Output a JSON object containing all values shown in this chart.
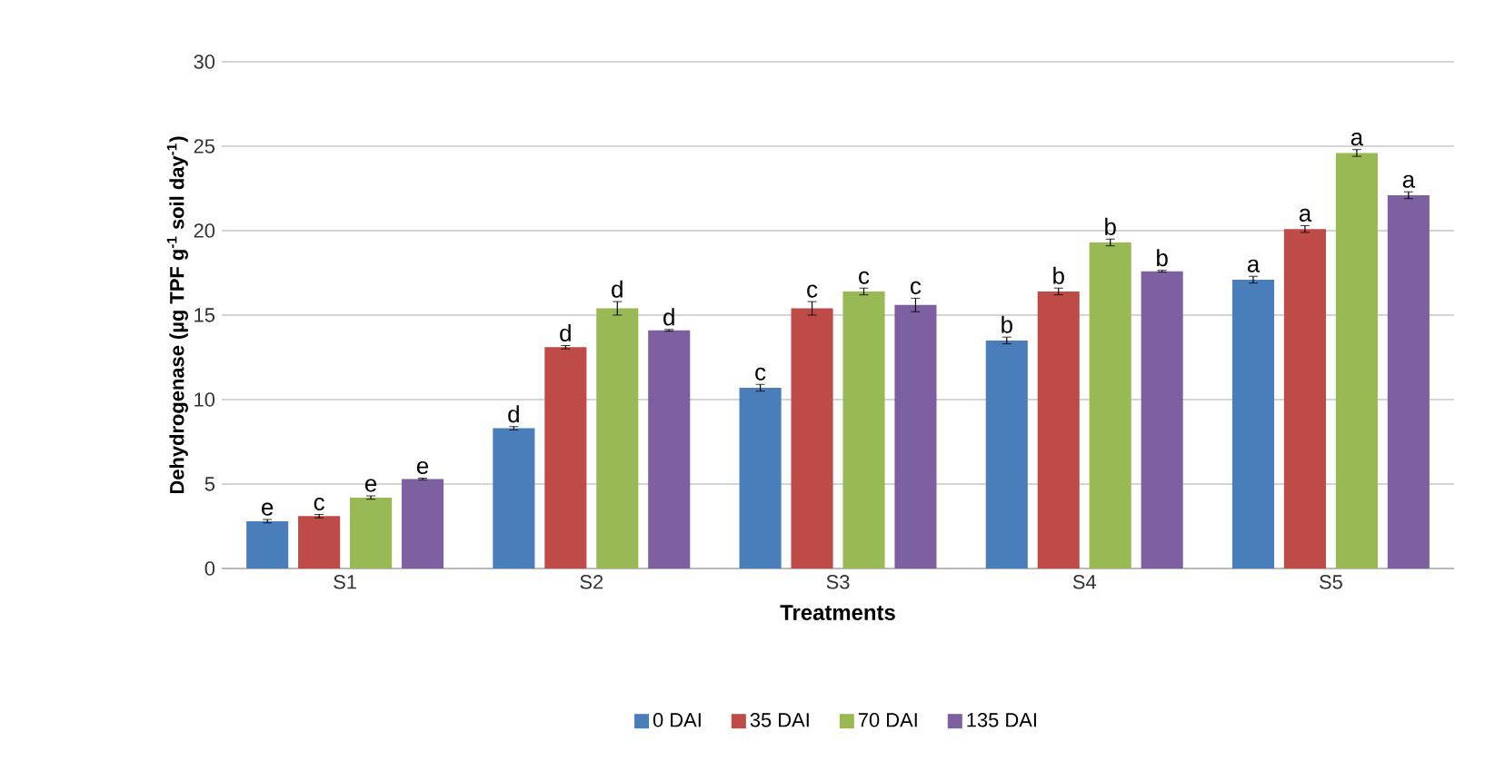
{
  "chart_data": {
    "type": "bar",
    "xlabel": "Treatments",
    "ylabel": "Dehydrogenase (µg TPF g$^{-1}$ soil day$^{-1}$)",
    "categories": [
      "S1",
      "S2",
      "S3",
      "S4",
      "S5"
    ],
    "series": [
      {
        "name": "0 DAI",
        "color": "#4a7ebb",
        "values": [
          2.8,
          8.3,
          10.7,
          13.5,
          17.1
        ],
        "errors": [
          0.1,
          0.1,
          0.2,
          0.2,
          0.2
        ],
        "value_labels": [
          "e",
          "d",
          "c",
          "b",
          "a"
        ]
      },
      {
        "name": "35 DAI",
        "color": "#be4b48",
        "values": [
          3.1,
          13.1,
          15.4,
          16.4,
          20.1
        ],
        "errors": [
          0.1,
          0.1,
          0.4,
          0.2,
          0.2
        ],
        "value_labels": [
          "c",
          "d",
          "c",
          "b",
          "a"
        ]
      },
      {
        "name": "70 DAI",
        "color": "#98b954",
        "values": [
          4.2,
          15.4,
          16.4,
          19.3,
          24.6
        ],
        "errors": [
          0.1,
          0.4,
          0.2,
          0.2,
          0.2
        ],
        "value_labels": [
          "e",
          "d",
          "c",
          "b",
          "a"
        ]
      },
      {
        "name": "135 DAI",
        "color": "#7d60a0",
        "values": [
          5.3,
          14.1,
          15.6,
          17.6,
          22.1
        ],
        "errors": [
          0.05,
          0.05,
          0.4,
          0.05,
          0.2
        ],
        "value_labels": [
          "e",
          "d",
          "c",
          "b",
          "a"
        ]
      }
    ],
    "ylim": [
      0,
      30
    ],
    "yticks": [
      0,
      5,
      10,
      15,
      20,
      25,
      30
    ],
    "grid": "y",
    "legend": "bottom"
  }
}
